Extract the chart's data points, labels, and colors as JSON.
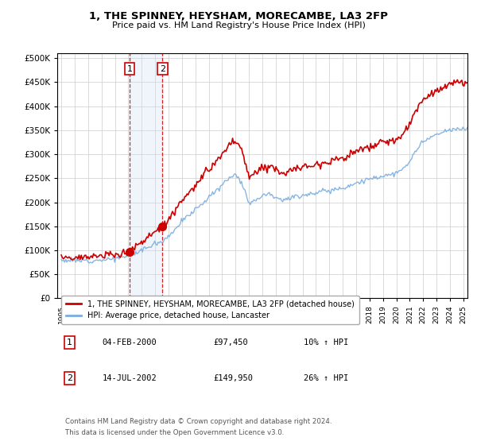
{
  "title": "1, THE SPINNEY, HEYSHAM, MORECAMBE, LA3 2FP",
  "subtitle": "Price paid vs. HM Land Registry's House Price Index (HPI)",
  "legend_line1": "1, THE SPINNEY, HEYSHAM, MORECAMBE, LA3 2FP (detached house)",
  "legend_line2": "HPI: Average price, detached house, Lancaster",
  "transaction1_label": "1",
  "transaction1_date": "04-FEB-2000",
  "transaction1_price": "£97,450",
  "transaction1_hpi": "10% ↑ HPI",
  "transaction1_year": 2000.09,
  "transaction1_value": 97450,
  "transaction2_label": "2",
  "transaction2_date": "14-JUL-2002",
  "transaction2_price": "£149,950",
  "transaction2_hpi": "26% ↑ HPI",
  "transaction2_year": 2002.54,
  "transaction2_value": 149950,
  "footnote1": "Contains HM Land Registry data © Crown copyright and database right 2024.",
  "footnote2": "This data is licensed under the Open Government Licence v3.0.",
  "red_color": "#cc0000",
  "blue_color": "#7aade0",
  "background_color": "#ffffff",
  "grid_color": "#cccccc",
  "highlight_color": "#ddeeff",
  "ylim_min": 0,
  "ylim_max": 510000,
  "xlim_min": 1994.7,
  "xlim_max": 2025.3
}
